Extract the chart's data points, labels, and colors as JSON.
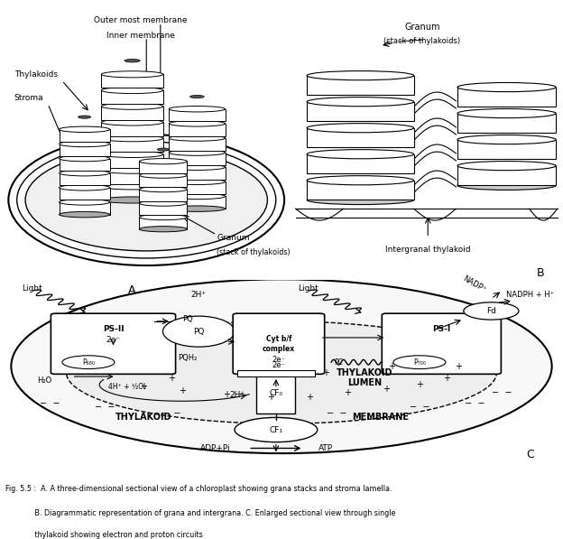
{
  "caption_line1": "Fig. 5.5 :  A. A three-dimensional sectional view of a chloroplast showing grana stacks and stroma lamella.",
  "caption_line2": "             B. Diagrammatic representation of grana and intergrana. C. Enlarged sectional view through single",
  "caption_line3": "             thylakoid showing electron and proton circuits",
  "bg_color": "#ffffff"
}
